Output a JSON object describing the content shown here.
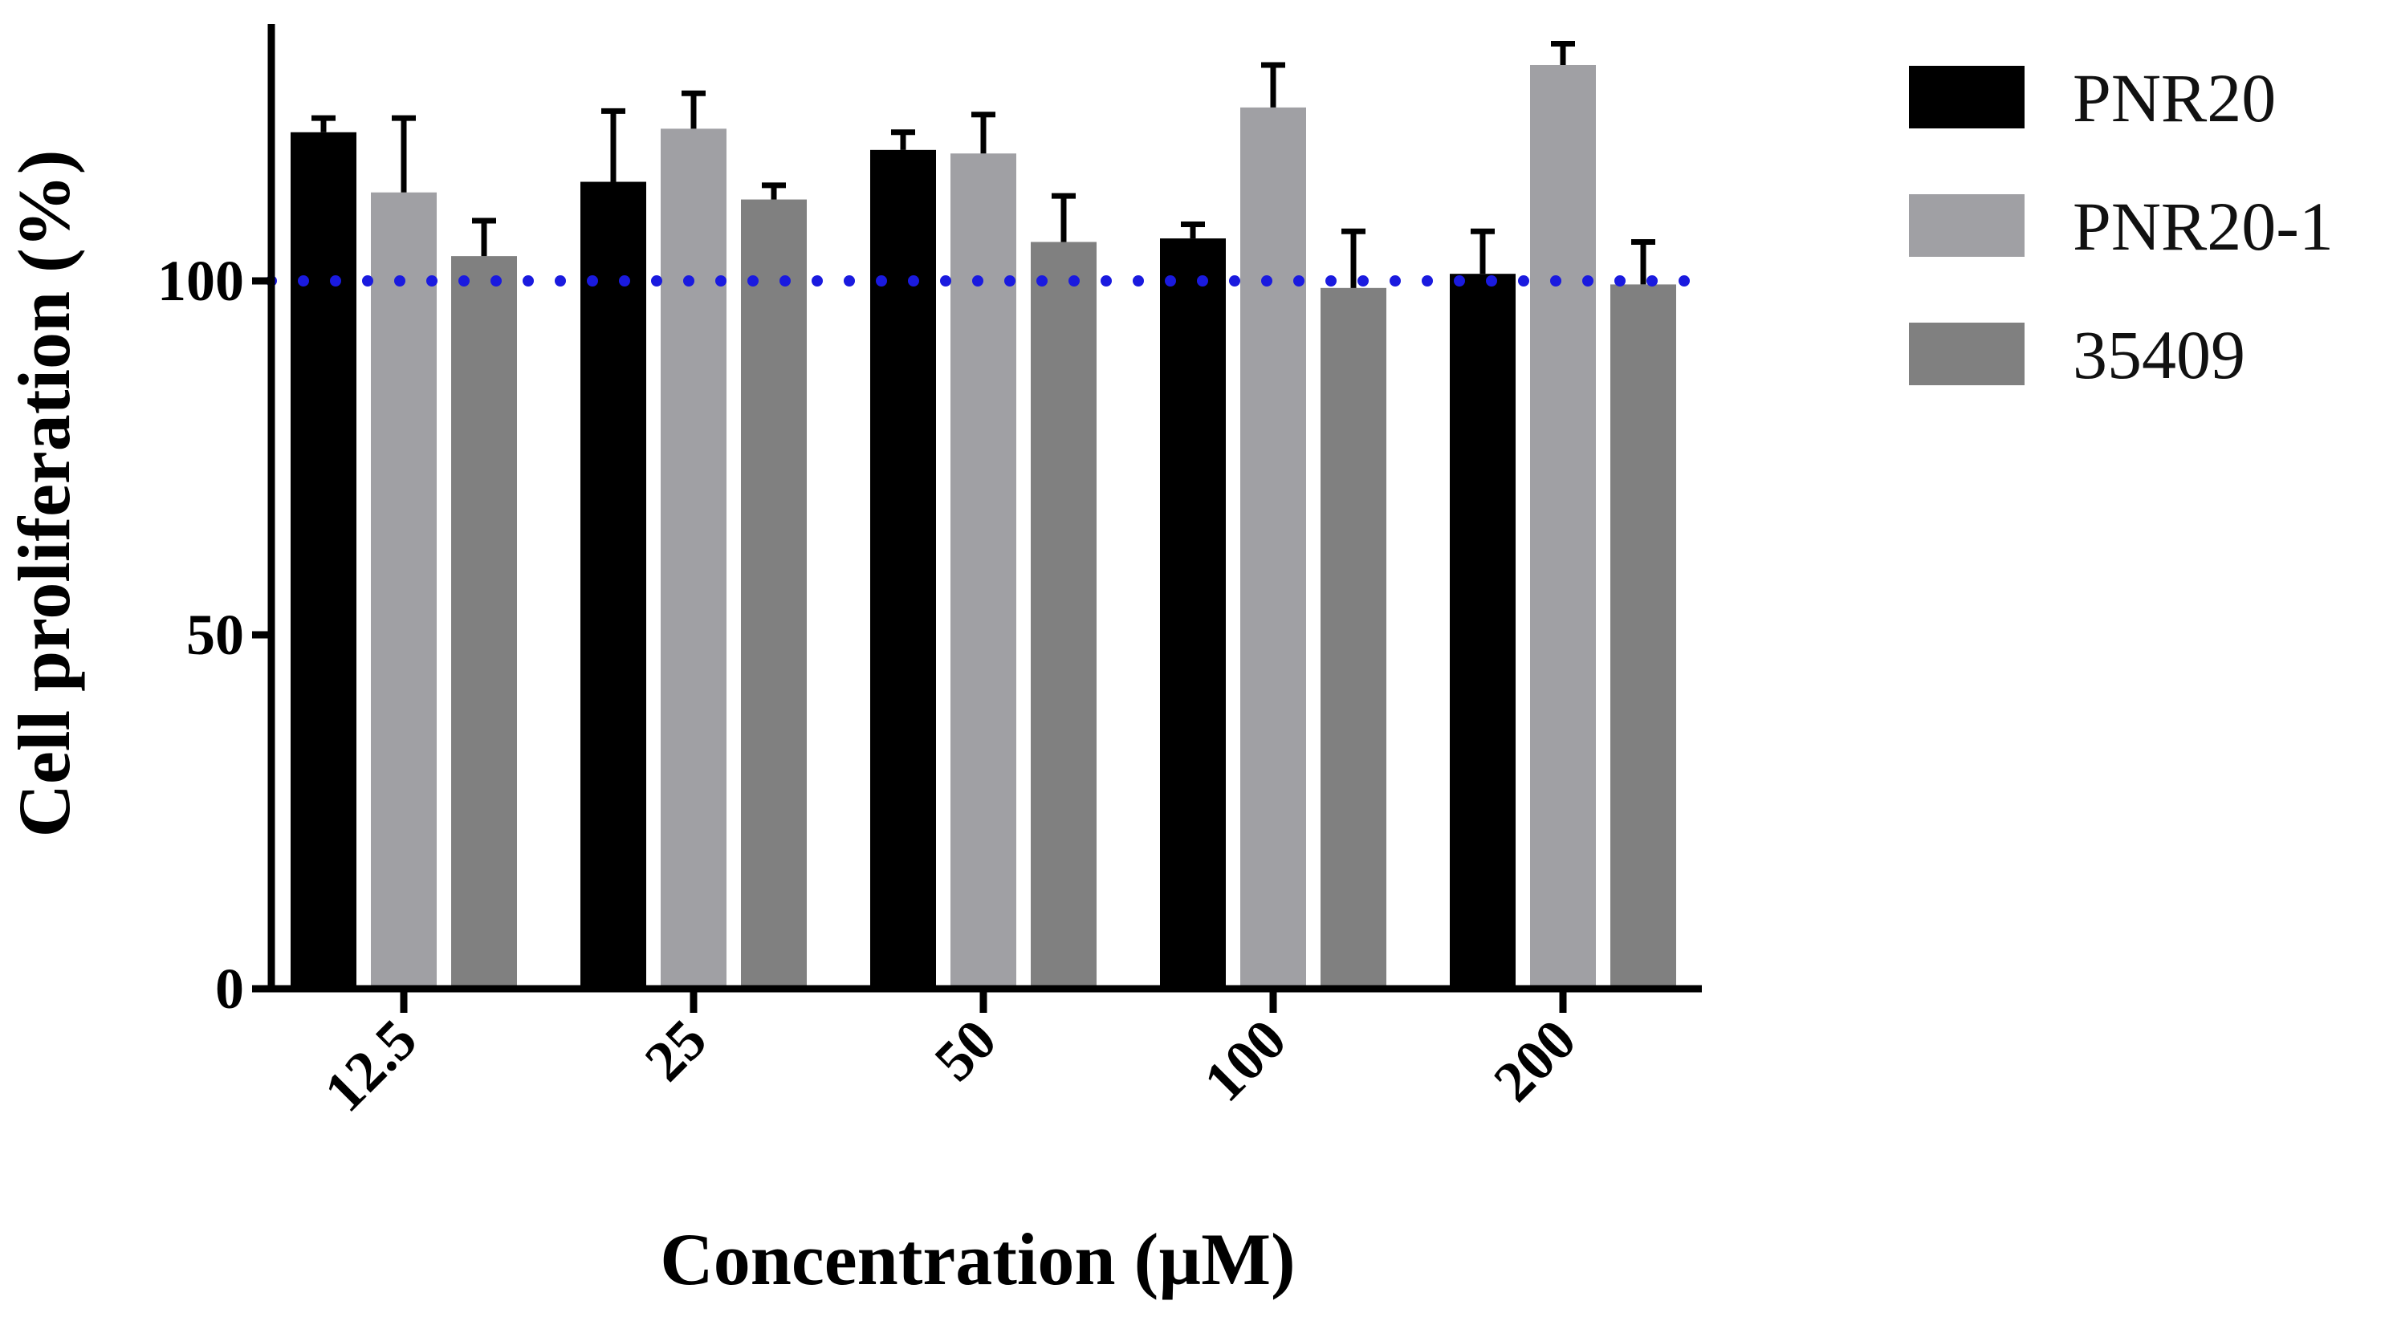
{
  "chart_data": {
    "type": "bar",
    "title": "",
    "xlabel": "Concentration (µM)",
    "ylabel": "Cell proliferation (%)",
    "categories": [
      "12.5",
      "25",
      "50",
      "100",
      "200"
    ],
    "ylim": [
      0,
      135
    ],
    "yticks": [
      {
        "value": 0,
        "label": "0"
      },
      {
        "value": 50,
        "label": "50"
      },
      {
        "value": 100,
        "label": "100"
      }
    ],
    "reference_line": {
      "value": 100,
      "color": "#1a1adf",
      "style": "dotted"
    },
    "legend_position": "right",
    "series": [
      {
        "name": "PNR20",
        "color": "#000000",
        "values": [
          121,
          114,
          118.5,
          106,
          101
        ],
        "errors": [
          2,
          10,
          2.5,
          2,
          6
        ]
      },
      {
        "name": "PNR20-1",
        "color": "#a0a0a4",
        "values": [
          112.5,
          121.5,
          118,
          124.5,
          130.5
        ],
        "errors": [
          10.5,
          5,
          5.5,
          6,
          3
        ]
      },
      {
        "name": "35409",
        "color": "#808080",
        "values": [
          103.5,
          111.5,
          105.5,
          99,
          99.5
        ],
        "errors": [
          5,
          2,
          6.5,
          8,
          6
        ]
      }
    ]
  }
}
